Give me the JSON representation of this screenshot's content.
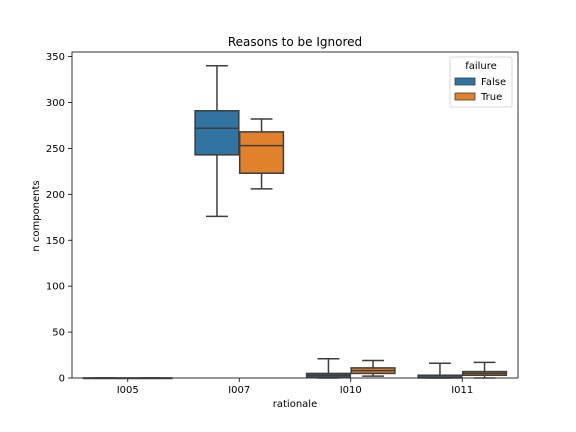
{
  "chart_data": {
    "type": "box",
    "title": "Reasons to be Ignored",
    "xlabel": "rationale",
    "ylabel": "n components",
    "categories": [
      "I005",
      "I007",
      "I010",
      "I011"
    ],
    "ylim": [
      0,
      355
    ],
    "yticks": [
      0,
      50,
      100,
      150,
      200,
      250,
      300,
      350
    ],
    "grid": false,
    "legend": {
      "title": "failure",
      "placement": "top-right"
    },
    "series": [
      {
        "name": "False",
        "color": "#3274a1",
        "boxes": [
          {
            "category": "I005",
            "min": 0,
            "q1": 0,
            "median": 0,
            "q3": 0,
            "max": 0
          },
          {
            "category": "I007",
            "min": 176,
            "q1": 243,
            "median": 272,
            "q3": 291,
            "max": 340
          },
          {
            "category": "I010",
            "min": 0,
            "q1": 1,
            "median": 3,
            "q3": 5,
            "max": 21
          },
          {
            "category": "I011",
            "min": 0,
            "q1": 0,
            "median": 1,
            "q3": 3,
            "max": 16
          }
        ]
      },
      {
        "name": "True",
        "color": "#e1812c",
        "boxes": [
          {
            "category": "I005",
            "min": 0,
            "q1": 0,
            "median": 0,
            "q3": 0,
            "max": 0
          },
          {
            "category": "I007",
            "min": 206,
            "q1": 223,
            "median": 253,
            "q3": 268,
            "max": 282
          },
          {
            "category": "I010",
            "min": 2,
            "q1": 5,
            "median": 8,
            "q3": 11,
            "max": 19
          },
          {
            "category": "I011",
            "min": 0,
            "q1": 3,
            "median": 5,
            "q3": 7,
            "max": 17
          }
        ]
      }
    ]
  }
}
